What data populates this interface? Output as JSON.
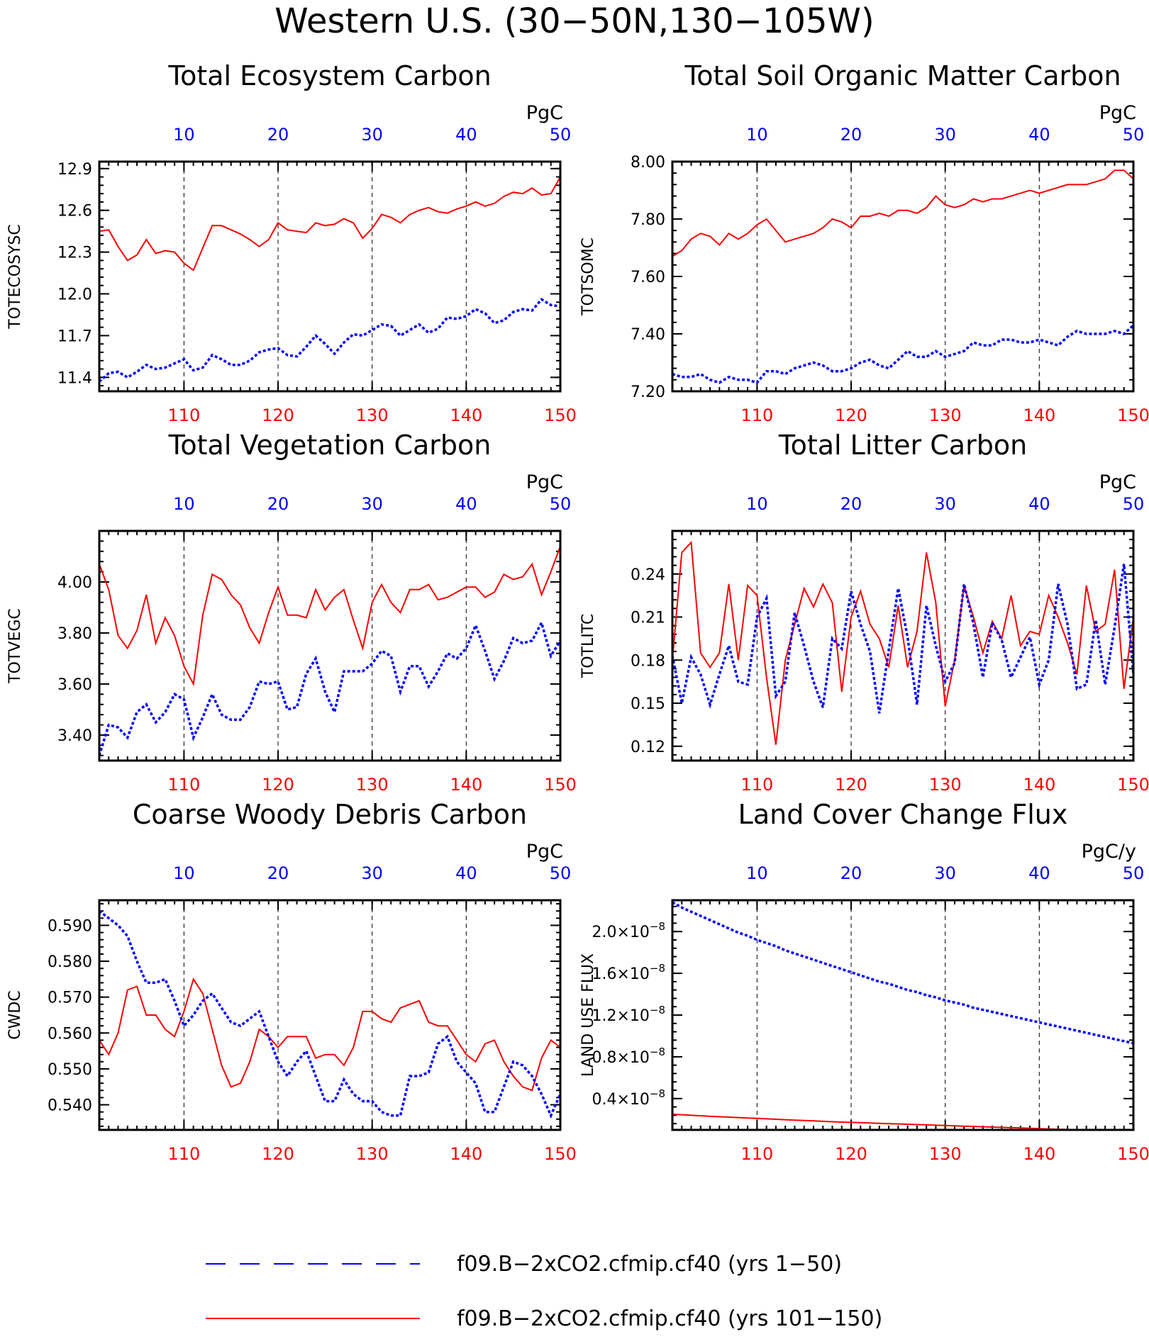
{
  "page": {
    "title": "Western U.S. (30−50N,130−105W)",
    "colors": {
      "bottom_axis": "#ff0000",
      "top_axis": "#0000ff",
      "frame": "#000000",
      "grid": "#000000"
    }
  },
  "legend": {
    "items": [
      {
        "label": "f09.B−2xCO2.cfmip.cf40 (yrs 1−50)",
        "color": "#0000ff",
        "style": "dashed"
      },
      {
        "label": "f09.B−2xCO2.cfmip.cf40 (yrs 101−150)",
        "color": "#ff0000",
        "style": "solid"
      }
    ]
  },
  "chart_data": [
    {
      "type": "line",
      "title": "Total Ecosystem Carbon",
      "ylabel": "TOTECOSYSC",
      "units": "PgC",
      "ylim": [
        11.3,
        12.95
      ],
      "yticks": [
        11.4,
        11.7,
        12.0,
        12.3,
        12.6,
        12.9
      ],
      "ytick_labels": [
        "11.4",
        "11.7",
        "12.0",
        "12.3",
        "12.6",
        "12.9"
      ],
      "x_bottom": {
        "range": [
          101,
          150
        ],
        "ticks": [
          110,
          120,
          130,
          140,
          150
        ]
      },
      "x_top": {
        "range": [
          1,
          50
        ],
        "ticks": [
          10,
          20,
          30,
          40,
          50
        ]
      },
      "grid": "vertical dashed at ticks",
      "series": [
        {
          "color": "#ff0000",
          "style": "solid",
          "x_axis": "bottom",
          "values": [
            12.45,
            12.46,
            12.34,
            12.24,
            12.28,
            12.39,
            12.29,
            12.31,
            12.3,
            12.22,
            12.17,
            12.33,
            12.49,
            12.49,
            12.46,
            12.43,
            12.39,
            12.34,
            12.39,
            12.51,
            12.46,
            12.45,
            12.44,
            12.51,
            12.49,
            12.5,
            12.54,
            12.51,
            12.4,
            12.47,
            12.57,
            12.55,
            12.51,
            12.57,
            12.6,
            12.62,
            12.59,
            12.58,
            12.61,
            12.63,
            12.66,
            12.63,
            12.65,
            12.7,
            12.73,
            12.72,
            12.76,
            12.71,
            12.72,
            12.84
          ]
        },
        {
          "color": "#0000ff",
          "style": "dashed",
          "x_axis": "top",
          "values": [
            11.37,
            11.43,
            11.44,
            11.4,
            11.44,
            11.49,
            11.46,
            11.47,
            11.5,
            11.53,
            11.45,
            11.47,
            11.56,
            11.53,
            11.49,
            11.49,
            11.52,
            11.58,
            11.6,
            11.61,
            11.56,
            11.55,
            11.62,
            11.7,
            11.64,
            11.57,
            11.65,
            11.71,
            11.7,
            11.74,
            11.78,
            11.77,
            11.7,
            11.74,
            11.78,
            11.72,
            11.75,
            11.83,
            11.82,
            11.84,
            11.89,
            11.86,
            11.79,
            11.81,
            11.87,
            11.89,
            11.88,
            11.96,
            11.92,
            11.91
          ]
        }
      ]
    },
    {
      "type": "line",
      "title": "Total Soil Organic Matter Carbon",
      "ylabel": "TOTSOMC",
      "units": "PgC",
      "ylim": [
        7.2,
        8.0
      ],
      "yticks": [
        7.2,
        7.4,
        7.6,
        7.8,
        8.0
      ],
      "ytick_labels": [
        "7.20",
        "7.40",
        "7.60",
        "7.80",
        "8.00"
      ],
      "x_bottom": {
        "range": [
          101,
          150
        ],
        "ticks": [
          110,
          120,
          130,
          140,
          150
        ]
      },
      "x_top": {
        "range": [
          1,
          50
        ],
        "ticks": [
          10,
          20,
          30,
          40,
          50
        ]
      },
      "grid": "vertical dashed at ticks",
      "series": [
        {
          "color": "#ff0000",
          "style": "solid",
          "x_axis": "bottom",
          "values": [
            7.67,
            7.69,
            7.73,
            7.75,
            7.74,
            7.71,
            7.75,
            7.73,
            7.75,
            7.78,
            7.8,
            7.76,
            7.72,
            7.73,
            7.74,
            7.75,
            7.77,
            7.8,
            7.79,
            7.77,
            7.81,
            7.81,
            7.82,
            7.81,
            7.83,
            7.83,
            7.82,
            7.84,
            7.88,
            7.85,
            7.84,
            7.85,
            7.87,
            7.86,
            7.87,
            7.87,
            7.88,
            7.89,
            7.9,
            7.89,
            7.9,
            7.91,
            7.92,
            7.92,
            7.92,
            7.93,
            7.94,
            7.97,
            7.97,
            7.94
          ]
        },
        {
          "color": "#0000ff",
          "style": "dashed",
          "x_axis": "top",
          "values": [
            7.26,
            7.25,
            7.25,
            7.26,
            7.24,
            7.23,
            7.25,
            7.24,
            7.24,
            7.23,
            7.27,
            7.27,
            7.26,
            7.28,
            7.29,
            7.3,
            7.29,
            7.27,
            7.27,
            7.28,
            7.3,
            7.31,
            7.29,
            7.28,
            7.31,
            7.34,
            7.32,
            7.32,
            7.34,
            7.32,
            7.33,
            7.34,
            7.37,
            7.36,
            7.36,
            7.38,
            7.38,
            7.37,
            7.37,
            7.38,
            7.37,
            7.36,
            7.39,
            7.41,
            7.4,
            7.4,
            7.4,
            7.41,
            7.4,
            7.43
          ]
        }
      ]
    },
    {
      "type": "line",
      "title": "Total Vegetation Carbon",
      "ylabel": "TOTVEGC",
      "units": "PgC",
      "ylim": [
        3.3,
        4.2
      ],
      "yticks": [
        3.4,
        3.6,
        3.8,
        4.0
      ],
      "ytick_labels": [
        "3.40",
        "3.60",
        "3.80",
        "4.00"
      ],
      "x_bottom": {
        "range": [
          101,
          150
        ],
        "ticks": [
          110,
          120,
          130,
          140,
          150
        ]
      },
      "x_top": {
        "range": [
          1,
          50
        ],
        "ticks": [
          10,
          20,
          30,
          40,
          50
        ]
      },
      "grid": "vertical dashed at ticks",
      "series": [
        {
          "color": "#ff0000",
          "style": "solid",
          "x_axis": "bottom",
          "values": [
            4.07,
            3.97,
            3.79,
            3.74,
            3.81,
            3.95,
            3.76,
            3.86,
            3.79,
            3.67,
            3.6,
            3.87,
            4.03,
            4.01,
            3.95,
            3.91,
            3.82,
            3.76,
            3.88,
            3.98,
            3.87,
            3.87,
            3.86,
            3.97,
            3.89,
            3.94,
            3.97,
            3.85,
            3.74,
            3.92,
            3.99,
            3.92,
            3.88,
            3.97,
            3.97,
            3.99,
            3.93,
            3.94,
            3.96,
            3.98,
            3.98,
            3.94,
            3.96,
            4.03,
            4.01,
            4.02,
            4.07,
            3.95,
            4.04,
            4.14
          ]
        },
        {
          "color": "#0000ff",
          "style": "dashed",
          "x_axis": "top",
          "values": [
            3.32,
            3.44,
            3.43,
            3.39,
            3.49,
            3.52,
            3.45,
            3.49,
            3.56,
            3.54,
            3.39,
            3.47,
            3.56,
            3.48,
            3.46,
            3.46,
            3.51,
            3.61,
            3.6,
            3.61,
            3.5,
            3.51,
            3.64,
            3.7,
            3.57,
            3.49,
            3.65,
            3.65,
            3.65,
            3.68,
            3.73,
            3.71,
            3.57,
            3.67,
            3.67,
            3.59,
            3.65,
            3.72,
            3.7,
            3.74,
            3.83,
            3.73,
            3.62,
            3.69,
            3.78,
            3.76,
            3.77,
            3.84,
            3.71,
            3.77
          ]
        }
      ]
    },
    {
      "type": "line",
      "title": "Total Litter Carbon",
      "ylabel": "TOTLITC",
      "units": "PgC",
      "ylim": [
        0.11,
        0.27
      ],
      "yticks": [
        0.12,
        0.15,
        0.18,
        0.21,
        0.24
      ],
      "ytick_labels": [
        "0.12",
        "0.15",
        "0.18",
        "0.21",
        "0.24"
      ],
      "x_bottom": {
        "range": [
          101,
          150
        ],
        "ticks": [
          110,
          120,
          130,
          140,
          150
        ]
      },
      "x_top": {
        "range": [
          1,
          50
        ],
        "ticks": [
          10,
          20,
          30,
          40,
          50
        ]
      },
      "grid": "vertical dashed at ticks",
      "series": [
        {
          "color": "#ff0000",
          "style": "solid",
          "x_axis": "bottom",
          "values": [
            0.18,
            0.255,
            0.262,
            0.185,
            0.175,
            0.185,
            0.233,
            0.18,
            0.232,
            0.225,
            0.168,
            0.121,
            0.18,
            0.205,
            0.23,
            0.217,
            0.233,
            0.22,
            0.158,
            0.21,
            0.228,
            0.205,
            0.195,
            0.175,
            0.218,
            0.175,
            0.2,
            0.255,
            0.22,
            0.148,
            0.18,
            0.232,
            0.21,
            0.185,
            0.207,
            0.195,
            0.225,
            0.19,
            0.2,
            0.198,
            0.225,
            0.21,
            0.192,
            0.17,
            0.232,
            0.2,
            0.205,
            0.243,
            0.16,
            0.21
          ]
        },
        {
          "color": "#0000ff",
          "style": "dashed",
          "x_axis": "top",
          "values": [
            0.183,
            0.15,
            0.182,
            0.17,
            0.149,
            0.17,
            0.19,
            0.165,
            0.163,
            0.21,
            0.223,
            0.155,
            0.165,
            0.213,
            0.19,
            0.165,
            0.147,
            0.195,
            0.188,
            0.228,
            0.205,
            0.186,
            0.143,
            0.187,
            0.23,
            0.196,
            0.149,
            0.218,
            0.19,
            0.165,
            0.178,
            0.233,
            0.205,
            0.168,
            0.206,
            0.194,
            0.168,
            0.182,
            0.196,
            0.163,
            0.18,
            0.233,
            0.205,
            0.16,
            0.163,
            0.208,
            0.163,
            0.203,
            0.247,
            0.17
          ]
        }
      ]
    },
    {
      "type": "line",
      "title": "Coarse Woody Debris Carbon",
      "ylabel": "CWDC",
      "units": "PgC",
      "ylim": [
        0.533,
        0.597
      ],
      "yticks": [
        0.54,
        0.55,
        0.56,
        0.57,
        0.58,
        0.59
      ],
      "ytick_labels": [
        "0.540",
        "0.550",
        "0.560",
        "0.570",
        "0.580",
        "0.590"
      ],
      "x_bottom": {
        "range": [
          101,
          150
        ],
        "ticks": [
          110,
          120,
          130,
          140,
          150
        ]
      },
      "x_top": {
        "range": [
          1,
          50
        ],
        "ticks": [
          10,
          20,
          30,
          40,
          50
        ]
      },
      "grid": "vertical dashed at ticks",
      "series": [
        {
          "color": "#ff0000",
          "style": "solid",
          "x_axis": "bottom",
          "values": [
            0.558,
            0.554,
            0.56,
            0.572,
            0.573,
            0.565,
            0.565,
            0.561,
            0.559,
            0.566,
            0.575,
            0.571,
            0.561,
            0.551,
            0.545,
            0.546,
            0.552,
            0.561,
            0.559,
            0.556,
            0.559,
            0.559,
            0.559,
            0.553,
            0.554,
            0.554,
            0.551,
            0.556,
            0.566,
            0.566,
            0.564,
            0.563,
            0.567,
            0.568,
            0.569,
            0.563,
            0.562,
            0.562,
            0.558,
            0.554,
            0.552,
            0.557,
            0.558,
            0.552,
            0.548,
            0.545,
            0.544,
            0.553,
            0.558,
            0.556
          ]
        },
        {
          "color": "#0000ff",
          "style": "dashed",
          "x_axis": "top",
          "values": [
            0.594,
            0.592,
            0.59,
            0.587,
            0.58,
            0.574,
            0.574,
            0.575,
            0.569,
            0.562,
            0.565,
            0.569,
            0.571,
            0.567,
            0.563,
            0.562,
            0.564,
            0.566,
            0.559,
            0.552,
            0.548,
            0.552,
            0.555,
            0.548,
            0.541,
            0.541,
            0.547,
            0.543,
            0.541,
            0.541,
            0.538,
            0.537,
            0.537,
            0.548,
            0.548,
            0.549,
            0.557,
            0.559,
            0.552,
            0.549,
            0.546,
            0.538,
            0.538,
            0.545,
            0.552,
            0.551,
            0.548,
            0.543,
            0.537,
            0.543
          ]
        }
      ]
    },
    {
      "type": "line",
      "title": "Land Cover Change Flux",
      "ylabel": "LAND USE FLUX",
      "units": "PgC/y",
      "ylim": [
        1e-09,
        2.3e-08
      ],
      "yticks": [
        4e-09,
        8e-09,
        1.2e-08,
        1.6e-08,
        2e-08
      ],
      "ytick_labels": [
        {
          "mantissa": "0.4",
          "exponent": "−8"
        },
        {
          "mantissa": "0.8",
          "exponent": "−8"
        },
        {
          "mantissa": "1.2",
          "exponent": "−8"
        },
        {
          "mantissa": "1.6",
          "exponent": "−8"
        },
        {
          "mantissa": "2.0",
          "exponent": "−8"
        }
      ],
      "x_bottom": {
        "range": [
          101,
          150
        ],
        "ticks": [
          110,
          120,
          130,
          140,
          150
        ]
      },
      "x_top": {
        "range": [
          1,
          50
        ],
        "ticks": [
          10,
          20,
          30,
          40,
          50
        ]
      },
      "grid": "vertical dashed at ticks",
      "series": [
        {
          "color": "#ff0000",
          "style": "solid",
          "x_axis": "bottom",
          "values": [
            2.5e-09,
            2.45e-09,
            2.4e-09,
            2.35e-09,
            2.3e-09,
            2.26e-09,
            2.22e-09,
            2.18e-09,
            2.14e-09,
            2.1e-09,
            2.06e-09,
            2.02e-09,
            1.98e-09,
            1.94e-09,
            1.9e-09,
            1.86e-09,
            1.82e-09,
            1.78e-09,
            1.75e-09,
            1.72e-09,
            1.69e-09,
            1.66e-09,
            1.63e-09,
            1.6e-09,
            1.57e-09,
            1.54e-09,
            1.51e-09,
            1.48e-09,
            1.45e-09,
            1.42e-09,
            1.39e-09,
            1.36e-09,
            1.33e-09,
            1.3e-09,
            1.27e-09,
            1.24e-09,
            1.21e-09,
            1.18e-09,
            1.15e-09,
            1.12e-09,
            1.09e-09,
            1.06e-09,
            1.04e-09,
            1.02e-09,
            1e-09,
            1e-09,
            1e-09,
            1e-09,
            1e-09,
            1e-09
          ]
        },
        {
          "color": "#0000ff",
          "style": "dashed",
          "x_axis": "top",
          "values": [
            2.28e-08,
            2.23e-08,
            2.19e-08,
            2.15e-08,
            2.11e-08,
            2.07e-08,
            2.03e-08,
            1.99e-08,
            1.96e-08,
            1.92e-08,
            1.89e-08,
            1.86e-08,
            1.82e-08,
            1.79e-08,
            1.76e-08,
            1.73e-08,
            1.7e-08,
            1.67e-08,
            1.64e-08,
            1.61e-08,
            1.58e-08,
            1.55e-08,
            1.52e-08,
            1.5e-08,
            1.47e-08,
            1.44e-08,
            1.42e-08,
            1.39e-08,
            1.37e-08,
            1.34e-08,
            1.32e-08,
            1.3e-08,
            1.27e-08,
            1.25e-08,
            1.23e-08,
            1.21e-08,
            1.19e-08,
            1.17e-08,
            1.15e-08,
            1.13e-08,
            1.11e-08,
            1.09e-08,
            1.07e-08,
            1.05e-08,
            1.03e-08,
            1.01e-08,
            9.9e-09,
            9.7e-09,
            9.5e-09,
            9.3e-09
          ]
        }
      ]
    }
  ]
}
